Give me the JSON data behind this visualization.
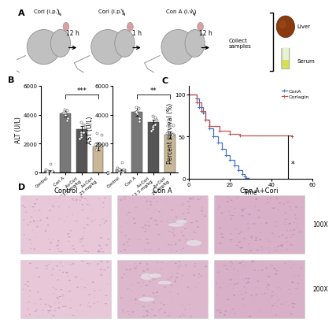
{
  "panel_A": {
    "mouse_labels": [
      "Cori (i.p.)",
      "Cori (i.p.)",
      "Con A (i.v.)"
    ],
    "arrow_labels": [
      "12 h",
      "1 h",
      "12 h"
    ],
    "end_label": "Collect\nsamples",
    "collect": [
      "Liver",
      "Serum"
    ]
  },
  "panel_B_ALT": {
    "categories": [
      "Control",
      "Con A",
      "A+Cori 12.5 mg/kg",
      "A+Cori 25 mg/kg"
    ],
    "means": [
      120,
      4100,
      3000,
      1800
    ],
    "sems": [
      20,
      200,
      220,
      280
    ],
    "bar_colors": [
      "#aaaaaa",
      "#787878",
      "#555555",
      "#c8b898"
    ],
    "ylabel": "ALT (U/L)",
    "ylim": [
      0,
      6000
    ],
    "yticks": [
      0,
      2000,
      4000,
      6000
    ],
    "sig_line": {
      "x1": 1,
      "x2": 3,
      "y": 5400,
      "text": "***"
    }
  },
  "panel_B_AST": {
    "categories": [
      "Control",
      "Con A",
      "A+Cori 12.5 mg/kg",
      "A+Cori 25 mg/kg"
    ],
    "means": [
      200,
      4200,
      3500,
      2600
    ],
    "sems": [
      30,
      250,
      180,
      230
    ],
    "bar_colors": [
      "#aaaaaa",
      "#787878",
      "#555555",
      "#c8b898"
    ],
    "ylabel": "AST (U/L)",
    "ylim": [
      0,
      6000
    ],
    "yticks": [
      0,
      2000,
      4000,
      6000
    ],
    "sig_line": {
      "x1": 1,
      "x2": 3,
      "y": 5400,
      "text": "**"
    }
  },
  "panel_C": {
    "conA_times": [
      0,
      4,
      5,
      7,
      8,
      10,
      12,
      14,
      16,
      18,
      20,
      22,
      24,
      26,
      27,
      28,
      29
    ],
    "conA_survival": [
      100,
      95,
      85,
      78,
      70,
      60,
      50,
      43,
      35,
      28,
      22,
      16,
      10,
      6,
      3,
      1,
      0
    ],
    "corlagin_times": [
      0,
      4,
      6,
      8,
      10,
      15,
      20,
      25,
      50
    ],
    "corlagin_survival": [
      100,
      90,
      80,
      70,
      62,
      57,
      53,
      51,
      50
    ],
    "conA_color": "#4472c4",
    "corlagin_color": "#c0504d",
    "xlabel": "Time",
    "ylabel": "Percent survival (%)",
    "xlim": [
      0,
      60
    ],
    "ylim": [
      0,
      110
    ],
    "xticks": [
      0,
      20,
      40,
      60
    ],
    "yticks": [
      0,
      50,
      100
    ],
    "legend": [
      "ConA",
      "Corlagin"
    ],
    "sig_x": 48,
    "sig_text": "*"
  },
  "panel_D": {
    "col_labels": [
      "Control",
      "Con A",
      "Con A+Cori"
    ],
    "row_labels": [
      "100X",
      "200X"
    ],
    "cell_colors": [
      "#e8c8d8",
      "#ddb8cc",
      "#d8b0c8"
    ]
  },
  "figure": {
    "bg_color": "#ffffff"
  }
}
